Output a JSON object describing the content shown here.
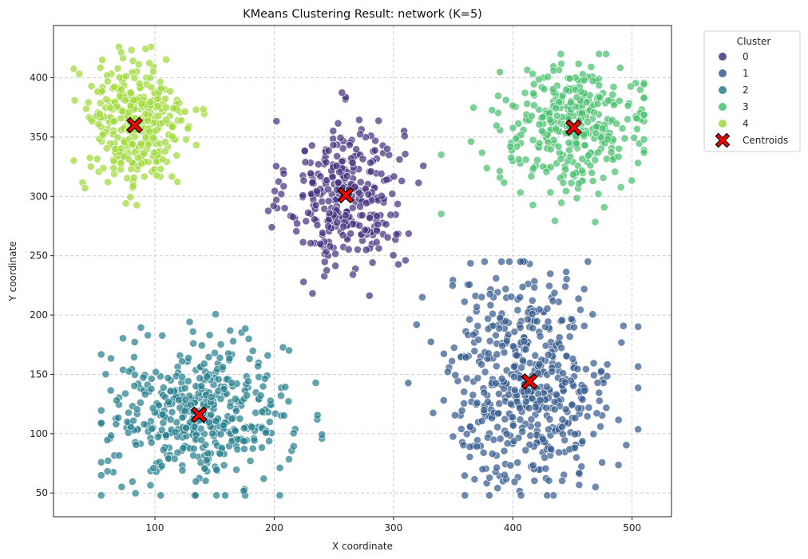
{
  "chart_data": {
    "type": "scatter",
    "title": "KMeans Clustering Result: network (K=5)",
    "xlabel": "X coordinate",
    "ylabel": "Y coordinate",
    "xlim": [
      15,
      533
    ],
    "ylim": [
      30,
      444
    ],
    "xticks": [
      100,
      200,
      300,
      400,
      500
    ],
    "yticks": [
      50,
      100,
      150,
      200,
      250,
      300,
      350,
      400
    ],
    "grid": true,
    "legend": {
      "title": "Cluster",
      "placement": "outside-top-right",
      "centroids_label": "Centroids"
    },
    "colors": [
      "#46327e",
      "#365c8d",
      "#277f8e",
      "#4ac16d",
      "#a0da39"
    ],
    "centroid_color": "#ff0000",
    "clusters": [
      {
        "name": "0",
        "center": [
          260,
          301
        ],
        "spread": [
          24,
          32
        ],
        "count": 330,
        "range": [
          [
            195,
            325
          ],
          [
            210,
            390
          ]
        ]
      },
      {
        "name": "1",
        "center": [
          414,
          144
        ],
        "spread": [
          35,
          45
        ],
        "count": 520,
        "range": [
          [
            310,
            505
          ],
          [
            48,
            245
          ]
        ]
      },
      {
        "name": "2",
        "center": [
          137,
          116
        ],
        "spread": [
          38,
          30
        ],
        "count": 450,
        "range": [
          [
            55,
            240
          ],
          [
            48,
            235
          ]
        ]
      },
      {
        "name": "3",
        "center": [
          451,
          358
        ],
        "spread": [
          32,
          26
        ],
        "count": 340,
        "range": [
          [
            340,
            510
          ],
          [
            248,
            420
          ]
        ]
      },
      {
        "name": "4",
        "center": [
          83,
          360
        ],
        "spread": [
          22,
          30
        ],
        "count": 330,
        "range": [
          [
            32,
            190
          ],
          [
            248,
            426
          ]
        ]
      }
    ],
    "centroids": [
      [
        260,
        301
      ],
      [
        414,
        144
      ],
      [
        137,
        116
      ],
      [
        451,
        358
      ],
      [
        83,
        360
      ]
    ]
  }
}
